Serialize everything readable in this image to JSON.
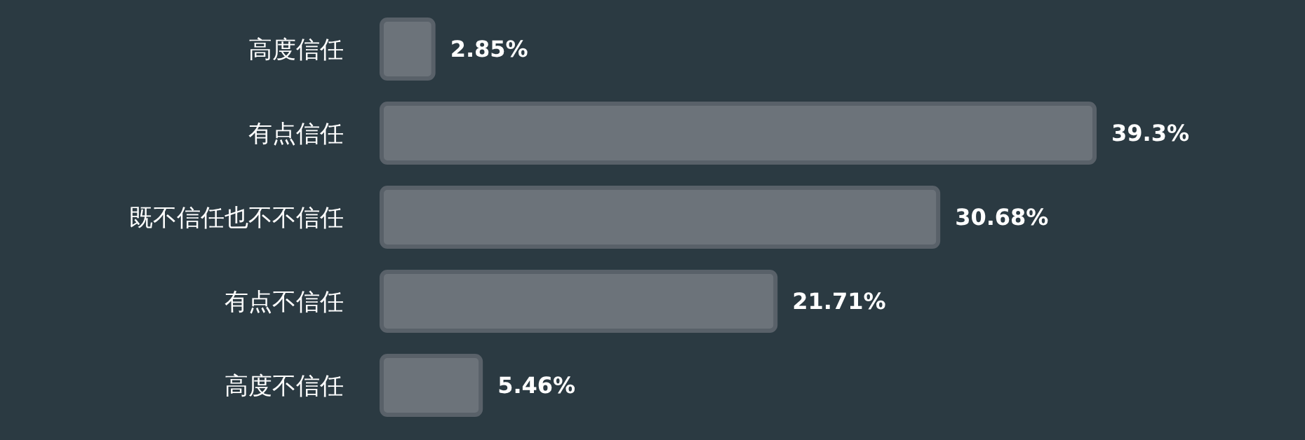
{
  "chart_data": {
    "type": "bar",
    "orientation": "horizontal",
    "categories": [
      "高度信任",
      "有点信任",
      "既不信任也不不信任",
      "有点不信任",
      "高度不信任"
    ],
    "values": [
      2.85,
      39.3,
      30.68,
      21.71,
      5.46
    ],
    "value_labels": [
      "2.85%",
      "39.3%",
      "30.68%",
      "21.71%",
      "5.46%"
    ],
    "color": "#6c737a"
  }
}
